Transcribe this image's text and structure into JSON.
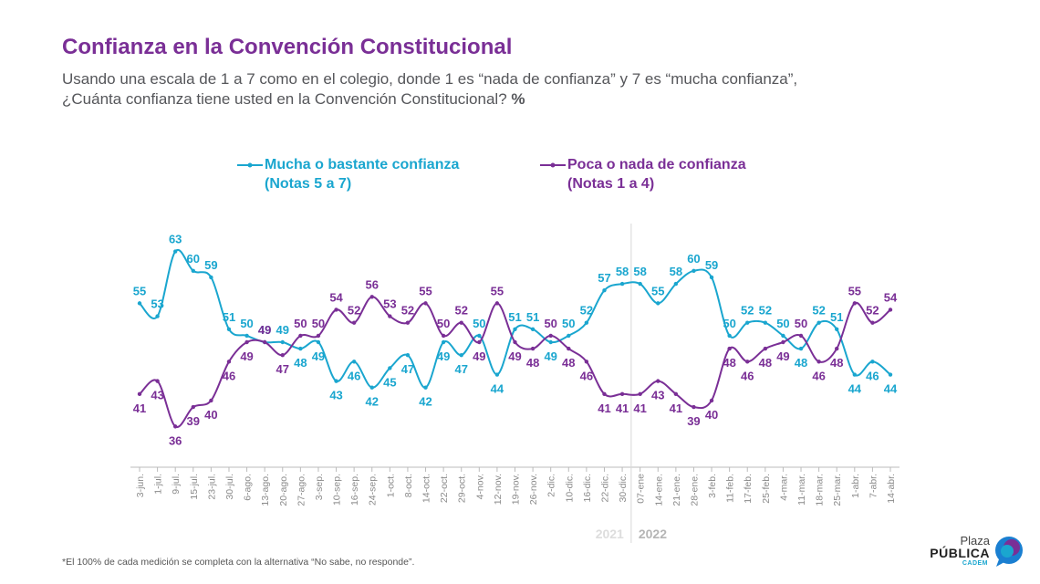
{
  "title": "Confianza en la Convención Constitucional",
  "subtitle_line1": "Usando una escala de 1 a 7 como en el colegio, donde 1 es “nada de confianza” y 7 es “mucha confianza”,",
  "subtitle_line2": "¿Cuánta confianza tiene usted en la Convención Constitucional?",
  "subtitle_unit": "%",
  "footnote": "*El 100% de cada medición se completa con la alternativa “No sabe, no responde”.",
  "logo": {
    "line1": "Plaza",
    "line2": "PÚBLICA",
    "line3": "CADEM"
  },
  "colors": {
    "series_a": "#1aa6cf",
    "series_b": "#7a2f96",
    "title": "#7a2f96"
  },
  "chart_data": {
    "type": "line",
    "x": [
      "3-jun.",
      "1-jul.",
      "9-jul.",
      "15-jul.",
      "23-jul.",
      "30-jul.",
      "6-ago.",
      "13-ago.",
      "20-ago.",
      "27-ago.",
      "3-sep.",
      "10-sep.",
      "16-sep.",
      "24-sep.",
      "1-oct.",
      "8-oct.",
      "14-oct.",
      "22-oct.",
      "29-oct.",
      "4-nov.",
      "12-nov.",
      "19-nov.",
      "26-nov.",
      "2-dic.",
      "10-dic.",
      "16-dic.",
      "22-dic.",
      "30-dic.",
      "07-ene",
      "14-ene.",
      "21-ene.",
      "28-ene.",
      "3-feb.",
      "11-feb.",
      "17-feb.",
      "25-feb.",
      "4-mar.",
      "11-mar.",
      "18-mar.",
      "25-mar.",
      "1-abr.",
      "7-abr.",
      "14-abr."
    ],
    "series": [
      {
        "name": "Mucha o bastante confianza",
        "name_line2": "(Notas 5 a 7)",
        "values": [
          55,
          53,
          63,
          60,
          59,
          51,
          50,
          49,
          49,
          48,
          49,
          43,
          46,
          42,
          45,
          47,
          42,
          49,
          47,
          50,
          44,
          51,
          51,
          49,
          50,
          52,
          57,
          58,
          58,
          55,
          58,
          60,
          59,
          50,
          52,
          52,
          50,
          48,
          52,
          51,
          44,
          46,
          44
        ]
      },
      {
        "name": "Poca o nada de confianza",
        "name_line2": "(Notas 1 a 4)",
        "values": [
          41,
          43,
          36,
          39,
          40,
          46,
          49,
          49,
          47,
          50,
          50,
          54,
          52,
          56,
          53,
          52,
          55,
          50,
          52,
          49,
          55,
          49,
          48,
          50,
          48,
          46,
          41,
          41,
          41,
          43,
          41,
          39,
          40,
          48,
          46,
          48,
          49,
          50,
          46,
          48,
          55,
          52,
          54
        ]
      }
    ],
    "year_labels": [
      "2021",
      "2022"
    ],
    "year_split_after": "30-dic.",
    "ylim": [
      30,
      68
    ],
    "grid": false,
    "legend": "top"
  }
}
